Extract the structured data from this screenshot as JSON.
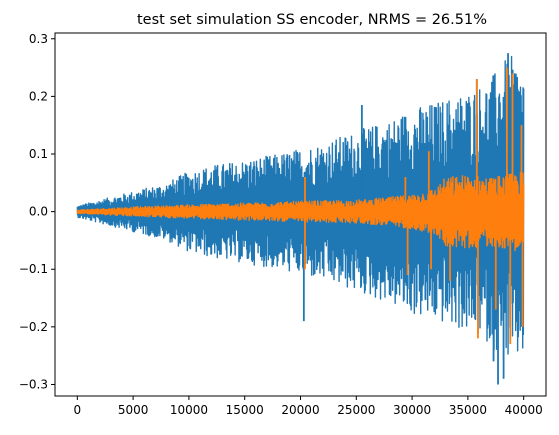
{
  "chart_data": {
    "type": "line",
    "title": "test set simulation SS encoder, NRMS = 26.51%",
    "xlabel": "",
    "ylabel": "",
    "xlim": [
      -2000,
      42000
    ],
    "ylim": [
      -0.32,
      0.31
    ],
    "x_ticks": [
      0,
      5000,
      10000,
      15000,
      20000,
      25000,
      30000,
      35000,
      40000
    ],
    "x_tick_labels": [
      "0",
      "5000",
      "10000",
      "15000",
      "20000",
      "25000",
      "30000",
      "35000",
      "40000"
    ],
    "y_ticks": [
      -0.3,
      -0.2,
      -0.1,
      0.0,
      0.1,
      0.2,
      0.3
    ],
    "y_tick_labels": [
      "−0.3",
      "−0.2",
      "−0.1",
      "0.0",
      "0.1",
      "0.2",
      "0.3"
    ],
    "x_range": [
      0,
      40000
    ],
    "grid": false,
    "series": [
      {
        "color": "#1f77b4",
        "envelope": {
          "x": [
            0,
            2000,
            5000,
            8000,
            10000,
            12000,
            15000,
            18000,
            20000,
            22000,
            25000,
            28000,
            30000,
            32000,
            35000,
            37000,
            38000,
            39000,
            40000
          ],
          "amplitude": [
            0.01,
            0.02,
            0.035,
            0.05,
            0.07,
            0.08,
            0.09,
            0.1,
            0.11,
            0.12,
            0.14,
            0.16,
            0.18,
            0.19,
            0.21,
            0.23,
            0.26,
            0.27,
            0.25
          ]
        },
        "peaks": [
          {
            "x": 20300,
            "y": -0.19
          },
          {
            "x": 25500,
            "y": 0.185
          },
          {
            "x": 35800,
            "y": 0.23
          },
          {
            "x": 37300,
            "y": -0.26
          },
          {
            "x": 37700,
            "y": -0.3
          },
          {
            "x": 38200,
            "y": -0.29
          },
          {
            "x": 38600,
            "y": 0.275
          },
          {
            "x": 39200,
            "y": 0.24
          }
        ]
      },
      {
        "color": "#ff7f0e",
        "envelope": {
          "x": [
            0,
            5000,
            10000,
            15000,
            20000,
            25000,
            28000,
            30000,
            32000,
            33000,
            35000,
            37000,
            40000
          ],
          "amplitude": [
            0.003,
            0.008,
            0.012,
            0.015,
            0.018,
            0.02,
            0.025,
            0.03,
            0.04,
            0.06,
            0.065,
            0.06,
            0.07
          ]
        },
        "peaks": [
          {
            "x": 20400,
            "y": 0.06
          },
          {
            "x": 20400,
            "y": -0.1
          },
          {
            "x": 29400,
            "y": 0.06
          },
          {
            "x": 29600,
            "y": -0.11
          },
          {
            "x": 31500,
            "y": 0.105
          },
          {
            "x": 31700,
            "y": -0.1
          },
          {
            "x": 33400,
            "y": -0.12
          },
          {
            "x": 35800,
            "y": 0.23
          },
          {
            "x": 35900,
            "y": -0.22
          },
          {
            "x": 37500,
            "y": -0.17
          },
          {
            "x": 38500,
            "y": 0.25
          },
          {
            "x": 38800,
            "y": -0.23
          },
          {
            "x": 39000,
            "y": 0.24
          },
          {
            "x": 39800,
            "y": 0.15
          },
          {
            "x": 39900,
            "y": -0.2
          }
        ]
      }
    ]
  }
}
